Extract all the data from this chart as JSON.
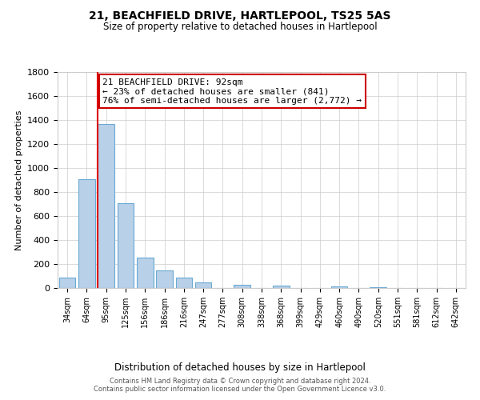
{
  "title": "21, BEACHFIELD DRIVE, HARTLEPOOL, TS25 5AS",
  "subtitle": "Size of property relative to detached houses in Hartlepool",
  "xlabel": "Distribution of detached houses by size in Hartlepool",
  "ylabel": "Number of detached properties",
  "bar_labels": [
    "34sqm",
    "64sqm",
    "95sqm",
    "125sqm",
    "156sqm",
    "186sqm",
    "216sqm",
    "247sqm",
    "277sqm",
    "308sqm",
    "338sqm",
    "368sqm",
    "399sqm",
    "429sqm",
    "460sqm",
    "490sqm",
    "520sqm",
    "551sqm",
    "581sqm",
    "612sqm",
    "642sqm"
  ],
  "bar_values": [
    88,
    910,
    1370,
    710,
    252,
    145,
    88,
    50,
    0,
    28,
    0,
    18,
    0,
    0,
    14,
    0,
    10,
    0,
    0,
    0,
    0
  ],
  "bar_color": "#b8d0e8",
  "bar_edge_color": "#6aaad4",
  "ylim": [
    0,
    1800
  ],
  "yticks": [
    0,
    200,
    400,
    600,
    800,
    1000,
    1200,
    1400,
    1600,
    1800
  ],
  "property_line_color": "#dd0000",
  "annotation_title": "21 BEACHFIELD DRIVE: 92sqm",
  "annotation_line1": "← 23% of detached houses are smaller (841)",
  "annotation_line2": "76% of semi-detached houses are larger (2,772) →",
  "annotation_box_color": "#ffffff",
  "annotation_box_edge": "#cc0000",
  "footnote1": "Contains HM Land Registry data © Crown copyright and database right 2024.",
  "footnote2": "Contains public sector information licensed under the Open Government Licence v3.0.",
  "bg_color": "#ffffff",
  "grid_color": "#cccccc"
}
